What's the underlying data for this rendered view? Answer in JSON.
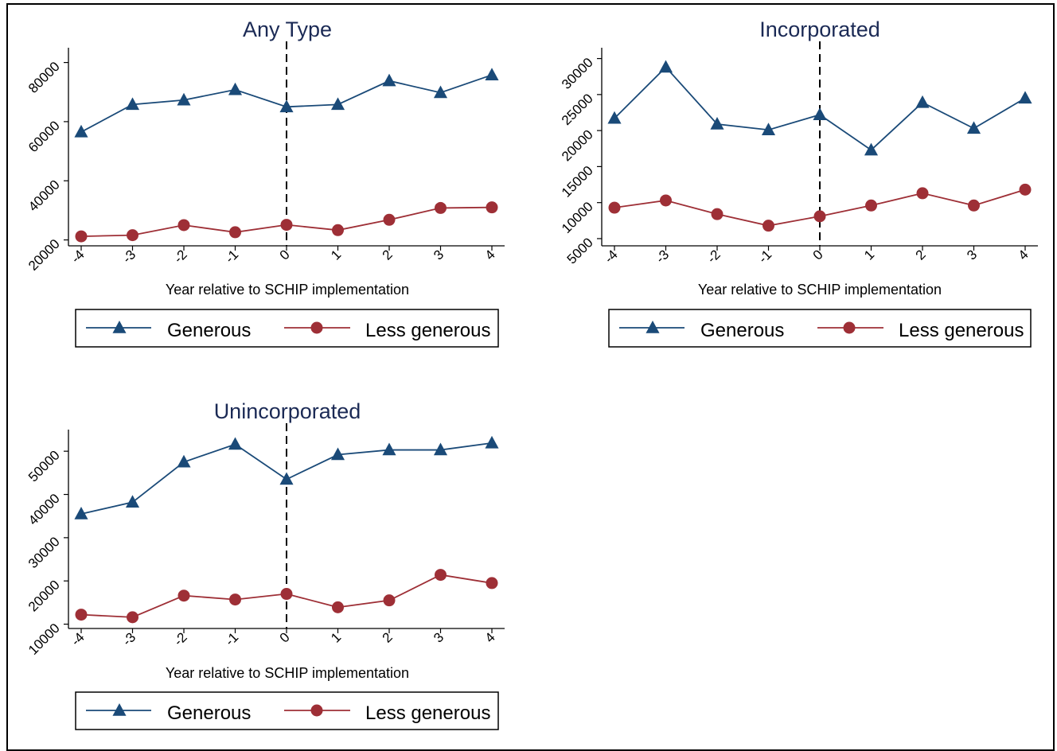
{
  "colors": {
    "generous": "#1a4a78",
    "less_generous": "#9e2f36"
  },
  "chart_data": [
    {
      "type": "line",
      "title": "Any Type",
      "xlabel": "Year relative to SCHIP implementation",
      "ylabel": "",
      "x": [
        -4,
        -3,
        -2,
        -1,
        0,
        1,
        2,
        3,
        4
      ],
      "xticks": [
        "-4",
        "-3",
        "-2",
        "-1",
        "0",
        "1",
        "2",
        "3",
        "4"
      ],
      "ylim": [
        18000,
        85000
      ],
      "yticks": [
        20000,
        40000,
        60000,
        80000
      ],
      "ytick_labels": [
        "20000",
        "40000",
        "60000",
        "80000"
      ],
      "vline_x": 0,
      "series": [
        {
          "name": "Generous",
          "marker": "triangle",
          "values": [
            56500,
            65800,
            67300,
            70800,
            65000,
            65800,
            73800,
            69800,
            75800
          ]
        },
        {
          "name": "Less generous",
          "marker": "circle",
          "values": [
            21200,
            21600,
            25000,
            22600,
            25100,
            23300,
            26800,
            30800,
            31000
          ]
        }
      ],
      "legend": {
        "position": "bottom",
        "entries": [
          "Generous",
          "Less generous"
        ]
      }
    },
    {
      "type": "line",
      "title": "Incorporated",
      "xlabel": "Year relative to SCHIP implementation",
      "ylabel": "",
      "x": [
        -4,
        -3,
        -2,
        -1,
        0,
        1,
        2,
        3,
        4
      ],
      "xticks": [
        "-4",
        "-3",
        "-2",
        "-1",
        "0",
        "1",
        "2",
        "3",
        "4"
      ],
      "ylim": [
        4000,
        31500
      ],
      "yticks": [
        5000,
        10000,
        15000,
        20000,
        25000,
        30000
      ],
      "ytick_labels": [
        "5000",
        "10000",
        "15000",
        "20000",
        "25000",
        "30000"
      ],
      "vline_x": 0,
      "series": [
        {
          "name": "Generous",
          "marker": "triangle",
          "values": [
            21700,
            28800,
            20900,
            20100,
            22200,
            17300,
            23900,
            20300,
            24500
          ]
        },
        {
          "name": "Less generous",
          "marker": "circle",
          "values": [
            9300,
            10300,
            8400,
            6800,
            8100,
            9600,
            11300,
            9600,
            11800
          ]
        }
      ],
      "legend": {
        "position": "bottom",
        "entries": [
          "Generous",
          "Less generous"
        ]
      }
    },
    {
      "type": "line",
      "title": "Unincorporated",
      "xlabel": "Year relative to SCHIP implementation",
      "ylabel": "",
      "x": [
        -4,
        -3,
        -2,
        -1,
        0,
        1,
        2,
        3,
        4
      ],
      "xticks": [
        "-4",
        "-3",
        "-2",
        "-1",
        "0",
        "1",
        "2",
        "3",
        "4"
      ],
      "ylim": [
        9000,
        55000
      ],
      "yticks": [
        10000,
        20000,
        30000,
        40000,
        50000
      ],
      "ytick_labels": [
        "10000",
        "20000",
        "30000",
        "40000",
        "50000"
      ],
      "vline_x": 0,
      "series": [
        {
          "name": "Generous",
          "marker": "triangle",
          "values": [
            35500,
            38200,
            47500,
            51600,
            43500,
            49200,
            50300,
            50300,
            51900
          ]
        },
        {
          "name": "Less generous",
          "marker": "circle",
          "values": [
            12200,
            11600,
            16600,
            15700,
            17000,
            13900,
            15500,
            21400,
            19500
          ]
        }
      ],
      "legend": {
        "position": "bottom",
        "entries": [
          "Generous",
          "Less generous"
        ]
      }
    }
  ]
}
